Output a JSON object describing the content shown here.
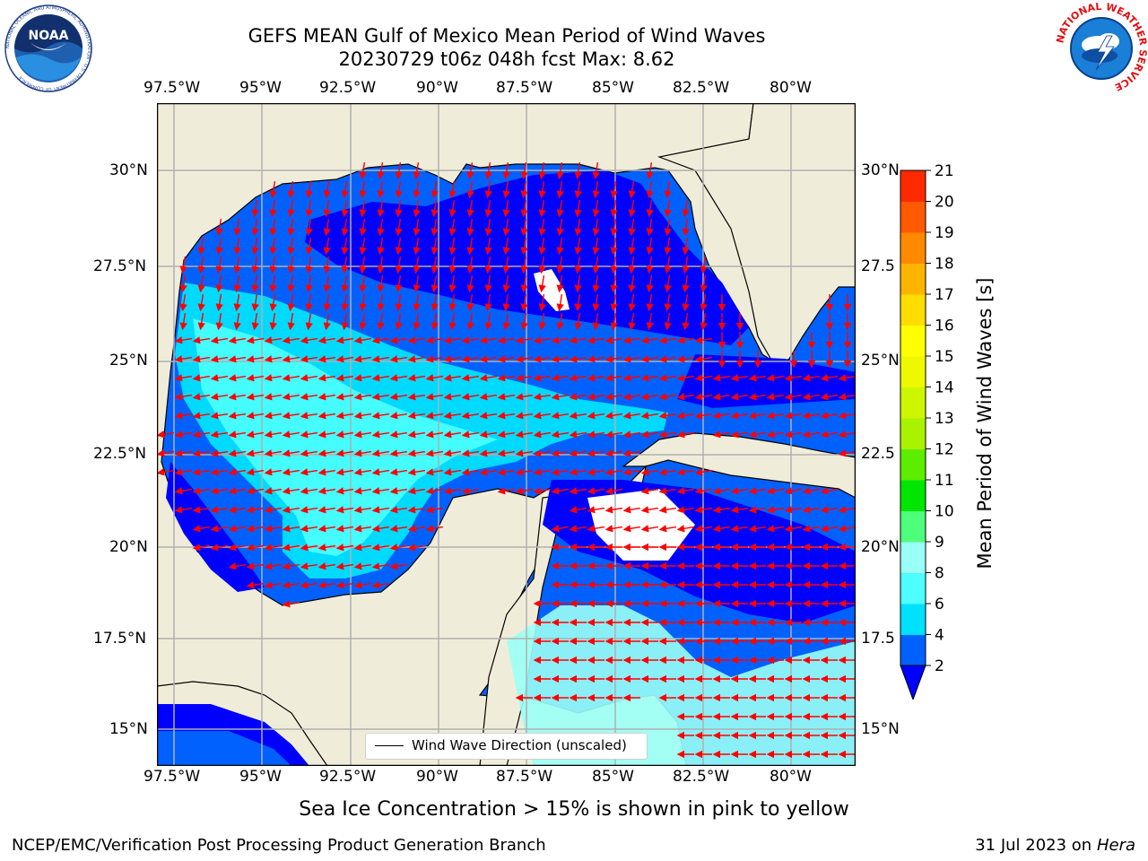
{
  "header": {
    "title_line1": "GEFS MEAN Gulf of Mexico Mean Period of Wind Waves",
    "title_line2": "20230729 t06z 048h fcst   Max: 8.62"
  },
  "logos": {
    "left": {
      "name": "NOARA logo",
      "text": "NOAA",
      "ring_text": "NATIONAL OCEANIC AND ATMOSPHERIC ADMINISTRATION · U.S. DEPARTMENT OF COMMERCE"
    },
    "right": {
      "name": "NWS logo",
      "ring_text": "NATIONAL WEATHER SERVICE"
    }
  },
  "map": {
    "longitude_ticks": [
      "97.5°W",
      "95°W",
      "92.5°W",
      "90°W",
      "87.5°W",
      "85°W",
      "82.5°W",
      "80°W"
    ],
    "latitude_ticks_left": [
      "30°N",
      "27.5°N",
      "25°N",
      "22.5°N",
      "20°N",
      "17.5°N",
      "15°N"
    ],
    "latitude_ticks_right": [
      "30°N",
      "27.5",
      "25°N",
      "22.5",
      "20°N",
      "17.5",
      "15°N"
    ],
    "lon_range": [
      -98,
      -78
    ],
    "lat_range": [
      14,
      31.5
    ],
    "gridlines": true,
    "land_color": "#efedda",
    "legend": {
      "label": "Wind Wave Direction (unscaled)",
      "position": "bottom-center"
    }
  },
  "colorbar": {
    "label": "Mean Period of Wind Waves [s]",
    "levels": [
      2,
      4,
      6,
      8,
      9,
      10,
      11,
      12,
      13,
      14,
      15,
      16,
      17,
      18,
      19,
      20,
      21
    ],
    "tick_labels": [
      "2",
      "4",
      "6",
      "8",
      "9",
      "10",
      "11",
      "12",
      "13",
      "14",
      "15",
      "16",
      "17",
      "18",
      "19",
      "20",
      "21"
    ],
    "colors": [
      "#0061ff",
      "#00e0ff",
      "#4dffff",
      "#9afff6",
      "#4dff7a",
      "#00e600",
      "#5ced00",
      "#a9f300",
      "#cdf600",
      "#eef800",
      "#ffff00",
      "#ffdd00",
      "#ffb400",
      "#ff8a00",
      "#ff5a00",
      "#ff2a00",
      "#ff0000"
    ],
    "under_color": "#0000ff",
    "extend": "min"
  },
  "footer": {
    "note": "Sea Ice Concentration > 15% is shown in pink to yellow",
    "credit_left": "NCEP/EMC/Verification Post Processing Product Generation Branch",
    "credit_date": "31 Jul 2023 on ",
    "credit_machine": "Hera"
  }
}
